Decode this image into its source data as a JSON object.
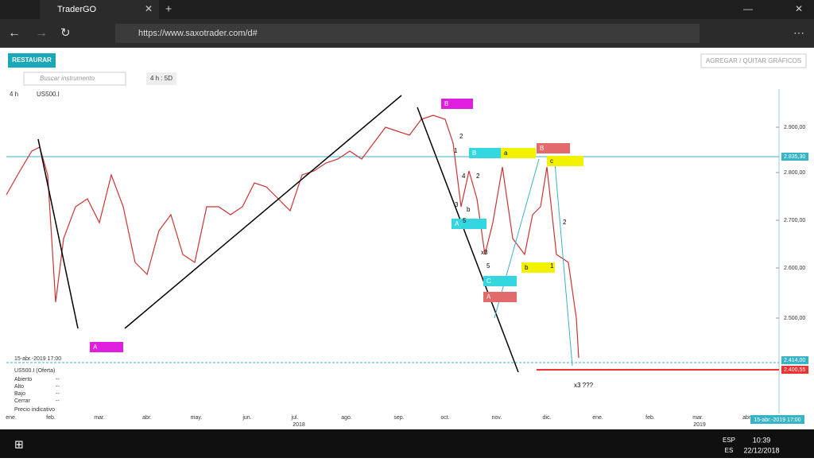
{
  "browser": {
    "tab_title": "TraderGO",
    "url": "https://www.saxotrader.com/d#"
  },
  "toolbar": {
    "restore": "RESTAURAR",
    "add_remove": "AGREGAR / QUITAR GRÁFICOS",
    "search_placeholder": "Buscar instrumento",
    "timeframe": "4 h : 5D"
  },
  "chart": {
    "timeframe": "4 h",
    "instrument": "US500.I",
    "y_axis_labels": [
      "2.900,00",
      "2.800,00",
      "2.700,00",
      "2.600,00",
      "2.500,00"
    ],
    "price_tags": [
      "2.835,30",
      "2.414,00",
      "2.400,55"
    ],
    "x_axis_labels": [
      "ene.",
      "feb.",
      "mar.",
      "abr.",
      "may.",
      "jun.",
      "jul.",
      "ago.",
      "sep.",
      "oct.",
      "nov.",
      "dic.",
      "ene.",
      "feb.",
      "mar.",
      "abr."
    ],
    "years": [
      "2018",
      "2019"
    ],
    "date_tag": "15-abr.-2019 17:00",
    "box_labels": [
      "A",
      "B",
      "B",
      "a",
      "B",
      "c",
      "A",
      "b",
      "C",
      "A"
    ],
    "wave_labels": [
      "2",
      "1",
      "4",
      "2",
      "3",
      "b",
      "5",
      "x3",
      "5",
      "1",
      "2",
      "x3 ???"
    ]
  },
  "info_panel": {
    "date": "15-abr.-2019 17:00",
    "instrument": "US500.I (Oferta)",
    "rows": [
      [
        "Abierto",
        "--"
      ],
      [
        "Alto",
        "--"
      ],
      [
        "Bajo",
        "--"
      ],
      [
        "Cerrar",
        "--"
      ]
    ],
    "note": "Precio indicativo"
  },
  "taskbar": {
    "lang_top": "ESP",
    "lang_bottom": "ES",
    "time": "10:39",
    "date": "22/12/2018"
  }
}
